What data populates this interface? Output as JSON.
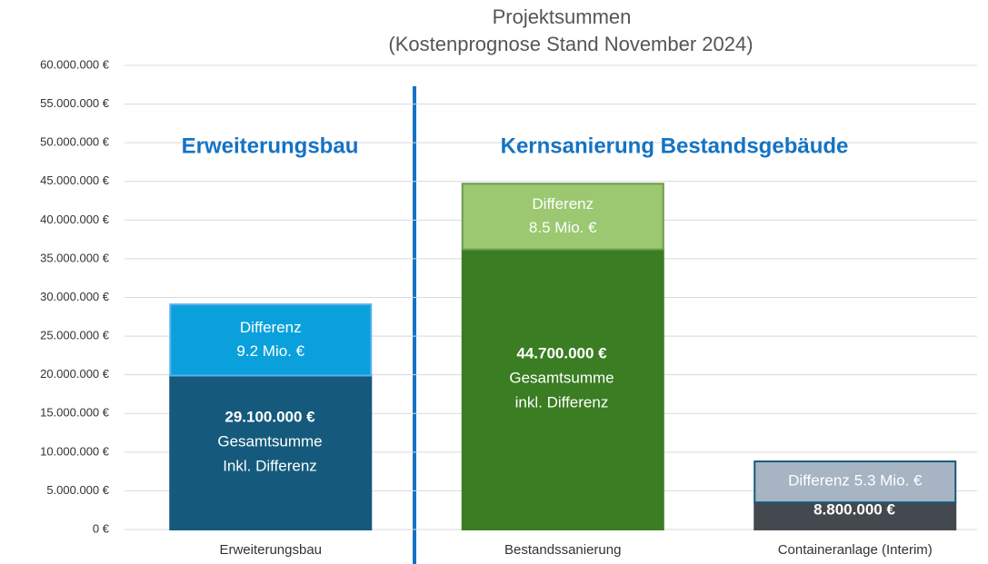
{
  "chart_data": {
    "type": "stacked_bar",
    "title": "Projektsummen",
    "subtitle": "(Kostenprognose Stand November 2024)",
    "categories": [
      "Erweiterungsbau",
      "Bestandssanierung",
      "Containeranlage (Interim)"
    ],
    "series": [
      {
        "colors": [
          "#155a7c",
          "#3a7d22",
          "#44494f"
        ],
        "values": [
          19900000,
          36200000,
          3500000
        ]
      },
      {
        "name": "Differenz",
        "colors": [
          "#0aa0dc",
          "#9bc870",
          "#a7b4c3"
        ],
        "values": [
          9200000,
          8500000,
          5300000
        ],
        "value_labels": [
          "9.2 Mio. €",
          "8.5 Mio. €",
          "5.3 Mio. €"
        ]
      }
    ],
    "ylim": [
      0,
      60000000
    ],
    "yticks": [
      {
        "value": 0,
        "label": "0 €"
      },
      {
        "value": 5000000,
        "label": "5.000.000 €"
      },
      {
        "value": 10000000,
        "label": "10.000.000 €"
      },
      {
        "value": 15000000,
        "label": "15.000.000 €"
      },
      {
        "value": 20000000,
        "label": "20.000.000 €"
      },
      {
        "value": 25000000,
        "label": "25.000.000 €"
      },
      {
        "value": 30000000,
        "label": "30.000.000 €"
      },
      {
        "value": 35000000,
        "label": "35.000.000 €"
      },
      {
        "value": 40000000,
        "label": "40.000.000 €"
      },
      {
        "value": 45000000,
        "label": "45.000.000 €"
      },
      {
        "value": 50000000,
        "label": "50.000.000 €"
      },
      {
        "value": 55000000,
        "label": "55.000.000 €"
      },
      {
        "value": 60000000,
        "label": "60.000.000 €"
      }
    ],
    "grid": true,
    "annotations": [
      {
        "text": "Erweiterungsbau"
      },
      {
        "text": "Kernsanierung Bestandsgebäude"
      },
      {
        "lines": [
          "29.100.000 €",
          "Gesamtsumme",
          "Inkl. Differenz"
        ]
      },
      {
        "lines": [
          "44.700.000 €",
          "Gesamtsumme",
          "inkl. Differenz"
        ]
      },
      {
        "lines": [
          "8.800.000 €"
        ]
      }
    ]
  }
}
